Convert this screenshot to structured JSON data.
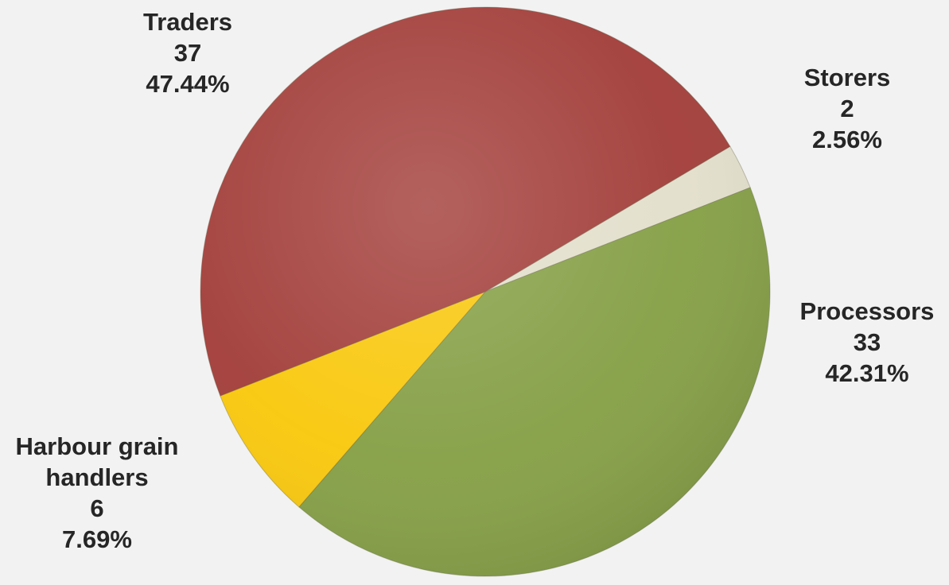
{
  "chart_data": {
    "type": "pie",
    "title": "",
    "slices": [
      {
        "name_lines": [
          "Storers"
        ],
        "value": 2,
        "percent": "2.56%",
        "color": "#e3dfcc"
      },
      {
        "name_lines": [
          "Processors"
        ],
        "value": 33,
        "percent": "42.31%",
        "color": "#86a047"
      },
      {
        "name_lines": [
          "Harbour grain",
          "handlers"
        ],
        "value": 6,
        "percent": "7.69%",
        "color": "#f9c80e"
      },
      {
        "name_lines": [
          "Traders"
        ],
        "value": 37,
        "percent": "47.44%",
        "color": "#a33f3b"
      }
    ],
    "start_angle_deg": -30.7,
    "legend": "none",
    "labels_outside": true
  }
}
